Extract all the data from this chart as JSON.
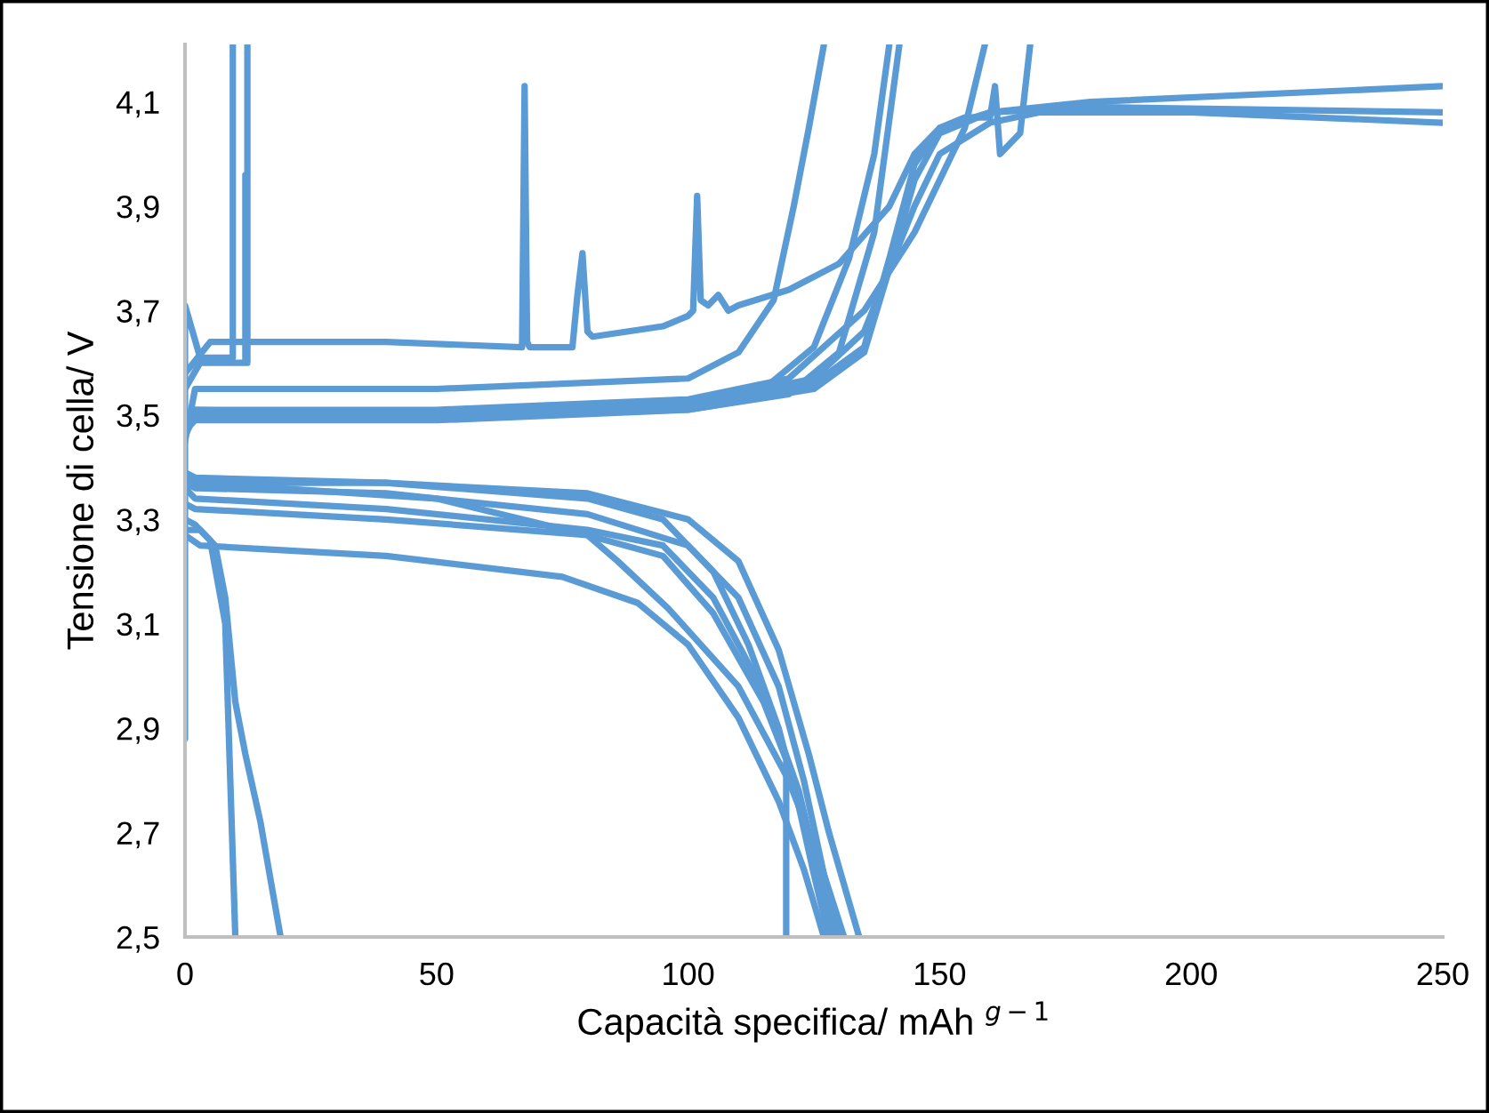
{
  "chart_data": {
    "type": "line",
    "xlabel": "Capacità specifica/ mAh $^{g−1}$",
    "ylabel": "Tensione di cella/ V",
    "xlim": [
      0,
      250
    ],
    "xticks": [
      0,
      50,
      100,
      150,
      200,
      250
    ],
    "ylim": [
      2.5,
      4.21
    ],
    "yticks": [
      {
        "value": 2.5,
        "label": "2,5"
      },
      {
        "value": 2.7,
        "label": "2,7"
      },
      {
        "value": 2.9,
        "label": "2,9"
      },
      {
        "value": 3.1,
        "label": "3,1"
      },
      {
        "value": 3.3,
        "label": "3,3"
      },
      {
        "value": 3.5,
        "label": "3,5"
      },
      {
        "value": 3.7,
        "label": "3,7"
      },
      {
        "value": 3.9,
        "label": "3,9"
      },
      {
        "value": 4.1,
        "label": "4,1"
      }
    ],
    "grid": false,
    "line_style": "solid",
    "series": [
      {
        "color": "#5b9bd5",
        "x": [
          0,
          0,
          3,
          9.5,
          9.5
        ],
        "values": [
          2.88,
          3.71,
          3.61,
          3.61,
          4.21
        ]
      },
      {
        "color": "#5b9bd5",
        "x": [
          0,
          3,
          12,
          12,
          12.4,
          12.4
        ],
        "values": [
          3.55,
          3.6,
          3.6,
          3.96,
          3.6,
          4.21
        ]
      },
      {
        "color": "#5b9bd5",
        "x": [
          0,
          5,
          40,
          67,
          67.5,
          68,
          68.5,
          77,
          78,
          79,
          80,
          81,
          95,
          100,
          101,
          101.8,
          102.5,
          104,
          106,
          108,
          110,
          120,
          130,
          140,
          145,
          150,
          155,
          160,
          161,
          162,
          166,
          168
        ],
        "values": [
          3.58,
          3.64,
          3.64,
          3.63,
          4.13,
          3.64,
          3.63,
          3.63,
          3.73,
          3.81,
          3.66,
          3.65,
          3.67,
          3.69,
          3.7,
          3.92,
          3.72,
          3.71,
          3.73,
          3.7,
          3.71,
          3.74,
          3.79,
          3.9,
          4.0,
          4.05,
          4.07,
          4.07,
          4.13,
          4.0,
          4.04,
          4.21
        ]
      },
      {
        "color": "#5b9bd5",
        "x": [
          0,
          2,
          50,
          100,
          110,
          117,
          121,
          124,
          127
        ],
        "values": [
          3.45,
          3.55,
          3.55,
          3.57,
          3.62,
          3.72,
          3.9,
          4.05,
          4.21
        ]
      },
      {
        "color": "#5b9bd5",
        "x": [
          0,
          2,
          50,
          100,
          115,
          125,
          132,
          137,
          140
        ],
        "values": [
          3.47,
          3.51,
          3.5,
          3.52,
          3.55,
          3.63,
          3.8,
          4.0,
          4.21
        ]
      },
      {
        "color": "#5b9bd5",
        "x": [
          0,
          2,
          50,
          100,
          120,
          130,
          137,
          142
        ],
        "values": [
          3.48,
          3.5,
          3.5,
          3.51,
          3.54,
          3.62,
          3.85,
          4.21
        ]
      },
      {
        "color": "#5b9bd5",
        "x": [
          0,
          2,
          50,
          100,
          125,
          135,
          140,
          145,
          150,
          160,
          180,
          250
        ],
        "values": [
          3.46,
          3.5,
          3.5,
          3.52,
          3.56,
          3.63,
          3.8,
          3.98,
          4.05,
          4.08,
          4.1,
          4.13
        ]
      },
      {
        "color": "#5b9bd5",
        "x": [
          0,
          2,
          50,
          100,
          125,
          135,
          140,
          145,
          150,
          160,
          180,
          250
        ],
        "values": [
          3.47,
          3.49,
          3.49,
          3.51,
          3.55,
          3.62,
          3.78,
          3.95,
          4.04,
          4.08,
          4.09,
          4.08
        ]
      },
      {
        "color": "#5b9bd5",
        "x": [
          0,
          2,
          50,
          100,
          125,
          135,
          145,
          150,
          160,
          170,
          200,
          250
        ],
        "values": [
          3.48,
          3.5,
          3.5,
          3.52,
          3.57,
          3.66,
          3.9,
          4.0,
          4.06,
          4.08,
          4.08,
          4.06
        ]
      },
      {
        "color": "#5b9bd5",
        "x": [
          0,
          2,
          50,
          100,
          120,
          135,
          145,
          150,
          155,
          159
        ],
        "values": [
          3.5,
          3.51,
          3.51,
          3.53,
          3.57,
          3.7,
          3.85,
          3.95,
          4.05,
          4.21
        ]
      },
      {
        "color": "#5b9bd5",
        "x": [
          0,
          2,
          40,
          80,
          95,
          105,
          112,
          118,
          122,
          125,
          128
        ],
        "values": [
          3.39,
          3.38,
          3.37,
          3.34,
          3.3,
          3.2,
          3.06,
          2.9,
          2.75,
          2.62,
          2.5
        ]
      },
      {
        "color": "#5b9bd5",
        "x": [
          0,
          2,
          40,
          80,
          100,
          110,
          118,
          124,
          128,
          131,
          134
        ],
        "values": [
          3.38,
          3.37,
          3.37,
          3.35,
          3.3,
          3.22,
          3.05,
          2.85,
          2.7,
          2.6,
          2.5
        ]
      },
      {
        "color": "#5b9bd5",
        "x": [
          0,
          2,
          40,
          80,
          100,
          110,
          118,
          123,
          127,
          130
        ],
        "values": [
          3.37,
          3.36,
          3.35,
          3.31,
          3.25,
          3.15,
          2.98,
          2.8,
          2.62,
          2.5
        ]
      },
      {
        "color": "#5b9bd5",
        "x": [
          0,
          2,
          40,
          80,
          95,
          105,
          115,
          122,
          126,
          129
        ],
        "values": [
          3.36,
          3.34,
          3.32,
          3.28,
          3.25,
          3.15,
          2.97,
          2.78,
          2.62,
          2.5
        ]
      },
      {
        "color": "#5b9bd5",
        "x": [
          0,
          2,
          40,
          80,
          95,
          105,
          115,
          119.5,
          119.5
        ],
        "values": [
          3.33,
          3.32,
          3.3,
          3.27,
          3.23,
          3.12,
          2.95,
          2.84,
          2.5
        ]
      },
      {
        "color": "#5b9bd5",
        "x": [
          0,
          3,
          40,
          75,
          90,
          100,
          110,
          118,
          123,
          127
        ],
        "values": [
          3.27,
          3.25,
          3.23,
          3.19,
          3.14,
          3.06,
          2.92,
          2.76,
          2.63,
          2.5
        ]
      },
      {
        "color": "#5b9bd5",
        "x": [
          0,
          2,
          50,
          80,
          86,
          96,
          110,
          120,
          126,
          131
        ],
        "values": [
          3.37,
          3.37,
          3.34,
          3.27,
          3.22,
          3.13,
          2.98,
          2.8,
          2.65,
          2.5
        ]
      },
      {
        "color": "#5b9bd5",
        "x": [
          0,
          2,
          5,
          8,
          9,
          10
        ],
        "values": [
          3.3,
          3.29,
          3.26,
          3.1,
          2.8,
          2.5
        ]
      },
      {
        "color": "#5b9bd5",
        "x": [
          0,
          3,
          6,
          8,
          10,
          12,
          15,
          19
        ],
        "values": [
          3.28,
          3.28,
          3.25,
          3.15,
          2.95,
          2.85,
          2.72,
          2.5
        ]
      }
    ]
  }
}
